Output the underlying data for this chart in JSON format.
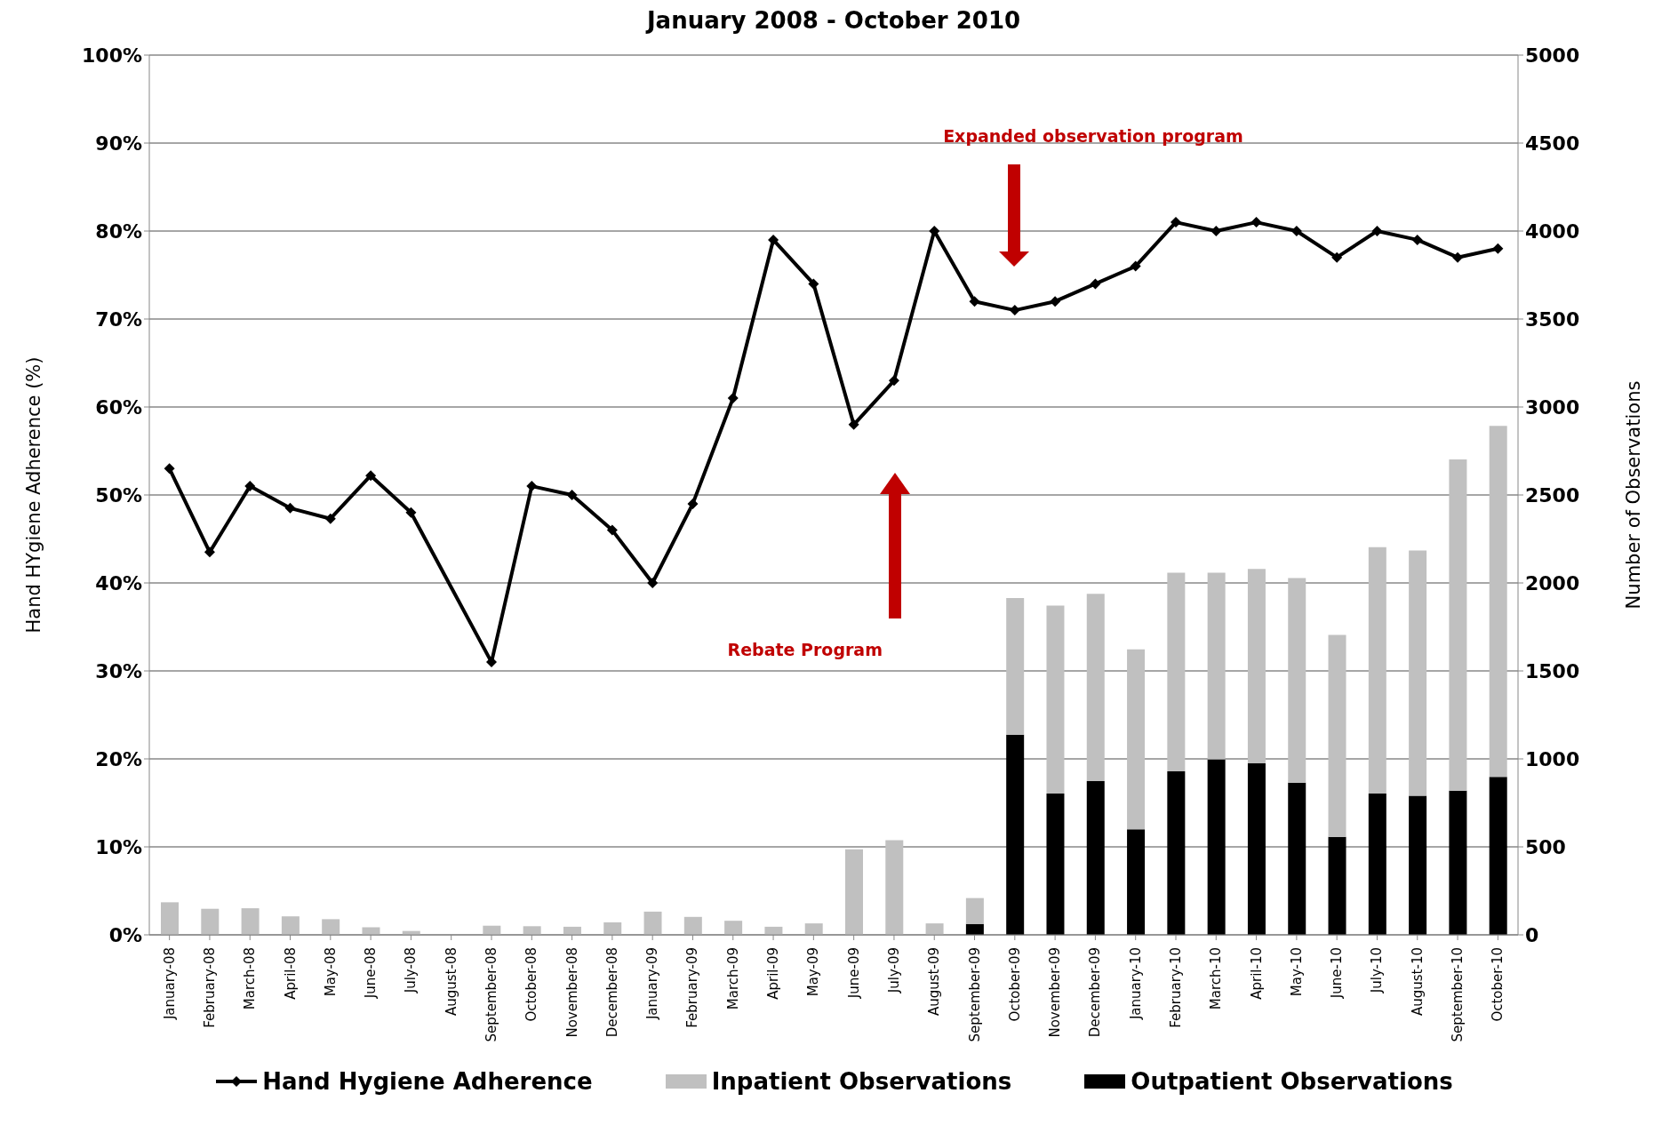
{
  "chart_data": {
    "type": "bar",
    "title": "January 2008 - October 2010",
    "ylabel": "Hand HYgiene Adherence (%)",
    "y2label": "Number of Observations",
    "categories": [
      "January-08",
      "February-08",
      "March-08",
      "April-08",
      "May-08",
      "June-08",
      "July-08",
      "August-08",
      "September-08",
      "October-08",
      "November-08",
      "December-08",
      "January-09",
      "February-09",
      "March-09",
      "April-09",
      "May-09",
      "June-09",
      "July-09",
      "August-09",
      "September-09",
      "October-09",
      "November-09",
      "December-09",
      "January-10",
      "February-10",
      "March-10",
      "April-10",
      "May-10",
      "June-10",
      "July-10",
      "August-10",
      "September-10",
      "October-10"
    ],
    "stacked": true,
    "series": [
      {
        "name": "Outpatient Observations",
        "axis": "y2",
        "color": "#000000",
        "values": [
          0,
          0,
          0,
          0,
          0,
          0,
          0,
          0,
          0,
          0,
          0,
          0,
          0,
          0,
          0,
          0,
          0,
          0,
          0,
          0,
          62,
          1138,
          803,
          874,
          600,
          929,
          997,
          975,
          865,
          557,
          803,
          791,
          819,
          898
        ]
      },
      {
        "name": "Inpatient Observations",
        "axis": "y2",
        "color": "#c0c0c0",
        "values": [
          185,
          148,
          151,
          105,
          89,
          43,
          22,
          0,
          52,
          49,
          46,
          71,
          132,
          102,
          80,
          46,
          65,
          486,
          538,
          65,
          147,
          776,
          1068,
          1064,
          1022,
          1129,
          1061,
          1105,
          1163,
          1148,
          1400,
          1393,
          1883,
          1995
        ]
      },
      {
        "name": "Hand Hygiene Adherence",
        "type": "line",
        "color": "#000000",
        "values": [
          53,
          43.5,
          51,
          48.5,
          47.3,
          52.2,
          48,
          null,
          31,
          51,
          50,
          46,
          40,
          49,
          61,
          79,
          74,
          58,
          63,
          80,
          72,
          71,
          72,
          74,
          76,
          81,
          80,
          81,
          80,
          77,
          80,
          79,
          77,
          78
        ]
      }
    ],
    "ylim": [
      0,
      100
    ],
    "yticks": [
      {
        "value": 0,
        "label": "0%"
      },
      {
        "value": 10,
        "label": "10%"
      },
      {
        "value": 20,
        "label": "20%"
      },
      {
        "value": 30,
        "label": "30%"
      },
      {
        "value": 40,
        "label": "40%"
      },
      {
        "value": 50,
        "label": "50%"
      },
      {
        "value": 60,
        "label": "60%"
      },
      {
        "value": 70,
        "label": "70%"
      },
      {
        "value": 80,
        "label": "80%"
      },
      {
        "value": 90,
        "label": "90%"
      },
      {
        "value": 100,
        "label": "100%"
      }
    ],
    "y2lim": [
      0,
      5000
    ],
    "y2ticks": [
      0,
      500,
      1000,
      1500,
      2000,
      2500,
      3000,
      3500,
      4000,
      4500,
      5000
    ],
    "annotations": [
      "Expanded observation program",
      "Rebate Program"
    ],
    "grid": "y",
    "legend": "bottom",
    "marker": "diamond",
    "line_style": "solid"
  }
}
